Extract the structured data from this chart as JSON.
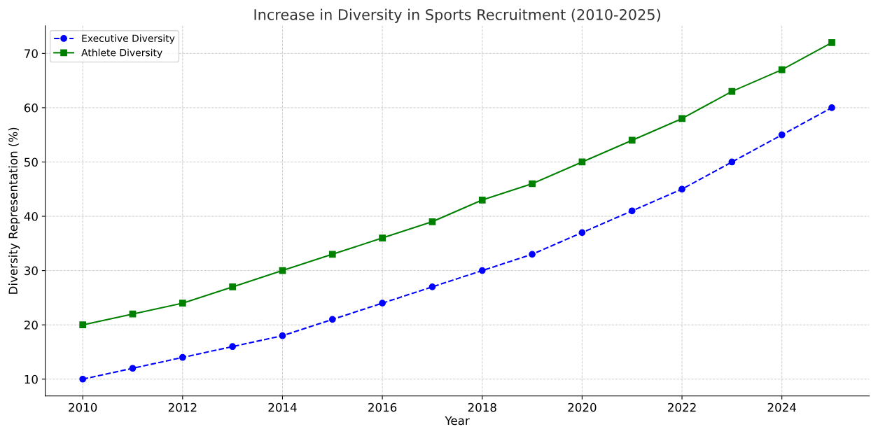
{
  "chart_data": {
    "type": "line",
    "title": "Increase in Diversity in Sports Recruitment (2010-2025)",
    "xlabel": "Year",
    "ylabel": "Diversity Representation (%)",
    "x": [
      2010,
      2011,
      2012,
      2013,
      2014,
      2015,
      2016,
      2017,
      2018,
      2019,
      2020,
      2021,
      2022,
      2023,
      2024,
      2025
    ],
    "series": [
      {
        "name": "Executive Diversity",
        "color": "#0000ff",
        "marker": "circle",
        "line_style": "dashed",
        "values": [
          10,
          12,
          14,
          16,
          18,
          21,
          24,
          27,
          30,
          33,
          37,
          41,
          45,
          50,
          55,
          60
        ]
      },
      {
        "name": "Athlete Diversity",
        "color": "#008000",
        "marker": "square",
        "line_style": "solid",
        "values": [
          20,
          22,
          24,
          27,
          30,
          33,
          36,
          39,
          43,
          46,
          50,
          54,
          58,
          63,
          67,
          72
        ]
      }
    ],
    "xlim": [
      2009.25,
      2025.75
    ],
    "xticks": [
      2010,
      2012,
      2014,
      2016,
      2018,
      2020,
      2022,
      2024
    ],
    "ylim": [
      6.9,
      75.1
    ],
    "yticks": [
      10,
      20,
      30,
      40,
      50,
      60,
      70
    ],
    "grid": true,
    "legend": "top left"
  }
}
